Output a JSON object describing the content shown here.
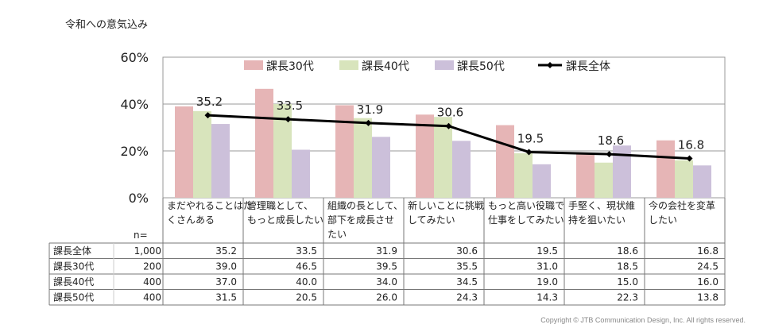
{
  "chart_data": {
    "type": "bar",
    "title": "令和への意気込み",
    "categories": [
      [
        "まだやれることはた",
        "くさんある"
      ],
      [
        "管理職として、",
        "もっと成長したい"
      ],
      [
        "組織の長として、",
        "部下を成長させ",
        "たい"
      ],
      [
        "新しいことに挑戦",
        "してみたい"
      ],
      [
        "もっと高い役職で",
        "仕事をしてみたい"
      ],
      [
        "手堅く、現状維",
        "持を狙いたい"
      ],
      [
        "今の会社を変革",
        "したい"
      ]
    ],
    "series": [
      {
        "name": "課長30代",
        "n": "200",
        "color": "#e6b5b6",
        "values": [
          39.0,
          46.5,
          39.5,
          35.5,
          31.0,
          18.5,
          24.5
        ],
        "labels": [
          "39.0",
          "46.5",
          "39.5",
          "35.5",
          "31.0",
          "18.5",
          "24.5"
        ]
      },
      {
        "name": "課長40代",
        "n": "400",
        "color": "#d8e4bc",
        "values": [
          37.0,
          40.0,
          34.0,
          34.5,
          19.0,
          15.0,
          16.0
        ],
        "labels": [
          "37.0",
          "40.0",
          "34.0",
          "34.5",
          "19.0",
          "15.0",
          "16.0"
        ]
      },
      {
        "name": "課長50代",
        "n": "400",
        "color": "#ccc0da",
        "values": [
          31.5,
          20.5,
          26.0,
          24.3,
          14.3,
          22.3,
          13.8
        ],
        "labels": [
          "31.5",
          "20.5",
          "26.0",
          "24.3",
          "14.3",
          "22.3",
          "13.8"
        ]
      }
    ],
    "line_series": {
      "name": "課長全体",
      "n": "1,000",
      "color": "#000000",
      "values": [
        35.2,
        33.5,
        31.9,
        30.6,
        19.5,
        18.6,
        16.8
      ],
      "labels": [
        "35.2",
        "33.5",
        "31.9",
        "30.6",
        "19.5",
        "18.6",
        "16.8"
      ]
    },
    "table_row_order": [
      "line",
      0,
      1,
      2
    ],
    "n_header": "n=",
    "ylim": [
      0,
      60
    ],
    "yticks": [
      0,
      20,
      40,
      60
    ],
    "ytick_labels": [
      "0%",
      "20%",
      "40%",
      "60%"
    ],
    "grid": true,
    "legend_position": "top"
  },
  "copyright": "Copyright © JTB Communication Design, Inc. All rights reserved."
}
